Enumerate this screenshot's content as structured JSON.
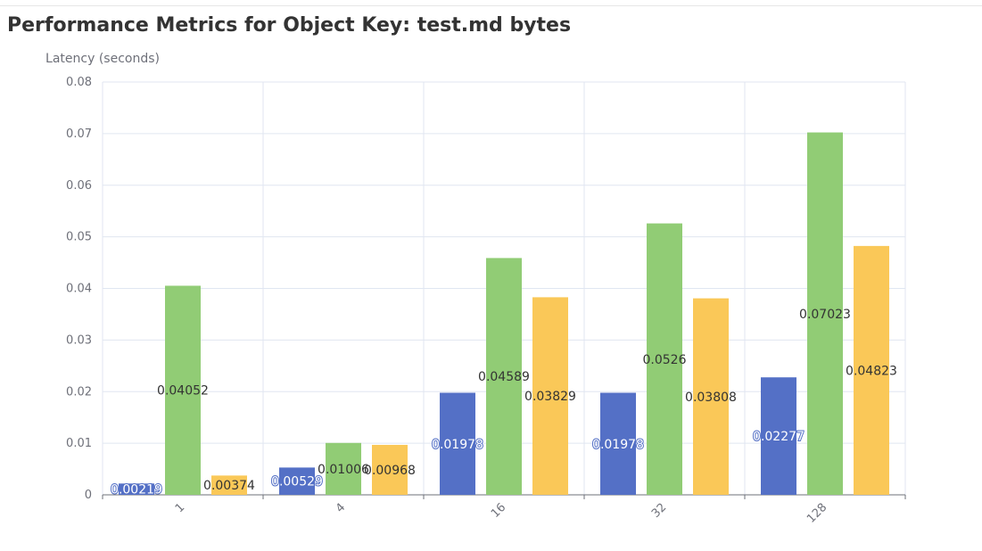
{
  "title": "Performance Metrics for Object Key: test.md bytes",
  "chart_data": {
    "type": "bar",
    "title": "Performance Metrics for Object Key: test.md bytes",
    "ylabel": "Latency (seconds)",
    "xlabel": "",
    "categories": [
      "1",
      "4",
      "16",
      "32",
      "128"
    ],
    "ylim": [
      0,
      0.08
    ],
    "yticks": [
      0,
      0.01,
      0.02,
      0.03,
      0.04,
      0.05,
      0.06,
      0.07,
      0.08
    ],
    "grid": true,
    "legend": "none",
    "series": [
      {
        "color": "#5470c6",
        "values": [
          0.00219,
          0.00529,
          0.01978,
          0.01978,
          0.02277
        ]
      },
      {
        "color": "#91cc75",
        "values": [
          0.04052,
          0.01006,
          0.04589,
          0.0526,
          0.07023
        ]
      },
      {
        "color": "#fac858",
        "values": [
          0.00374,
          0.00968,
          0.03829,
          0.03808,
          0.04823
        ]
      }
    ]
  }
}
